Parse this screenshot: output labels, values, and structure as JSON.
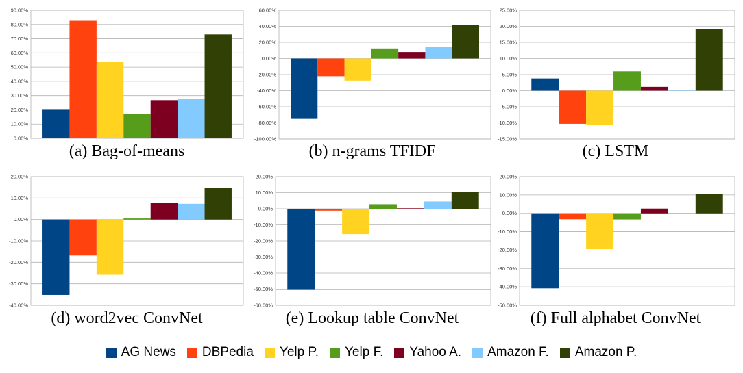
{
  "series_colors": [
    "#004586",
    "#ff420e",
    "#ffd320",
    "#579d1c",
    "#7e0021",
    "#83caff",
    "#314004"
  ],
  "legend": [
    "AG News",
    "DBPedia",
    "Yelp P.",
    "Yelp F.",
    "Yahoo A.",
    "Amazon F.",
    "Amazon P."
  ],
  "chart_data": [
    {
      "type": "bar",
      "title": "(a) Bag-of-means",
      "categories": [
        "AG News",
        "DBPedia",
        "Yelp P.",
        "Yelp F.",
        "Yahoo A.",
        "Amazon F.",
        "Amazon P."
      ],
      "values": [
        20.5,
        83.0,
        53.7,
        17.2,
        26.8,
        27.5,
        73.0
      ],
      "ylim": [
        0,
        90
      ],
      "ytick_step": 10,
      "ytick_labels": [
        "0.00%",
        "10.00%",
        "20.00%",
        "30.00%",
        "40.00%",
        "50.00%",
        "60.00%",
        "70.00%",
        "80.00%",
        "90.00%"
      ],
      "grid": true
    },
    {
      "type": "bar",
      "title": "(b) n-grams TFIDF",
      "categories": [
        "AG News",
        "DBPedia",
        "Yelp P.",
        "Yelp F.",
        "Yahoo A.",
        "Amazon F.",
        "Amazon P."
      ],
      "values": [
        -75.0,
        -22.0,
        -27.5,
        12.5,
        8.0,
        14.5,
        41.5
      ],
      "ylim": [
        -100,
        60
      ],
      "ytick_step": 20,
      "ytick_labels": [
        "-100.00%",
        "-80.00%",
        "-60.00%",
        "-40.00%",
        "-20.00%",
        "0.00%",
        "20.00%",
        "40.00%",
        "60.00%"
      ],
      "grid": true
    },
    {
      "type": "bar",
      "title": "(c) LSTM",
      "categories": [
        "AG News",
        "DBPedia",
        "Yelp P.",
        "Yelp F.",
        "Yahoo A.",
        "Amazon F.",
        "Amazon P."
      ],
      "values": [
        3.8,
        -10.3,
        -10.6,
        6.0,
        1.2,
        0.2,
        19.2
      ],
      "ylim": [
        -15,
        25
      ],
      "ytick_step": 5,
      "ytick_labels": [
        "-15.00%",
        "-10.00%",
        "-5.00%",
        "0.00%",
        "5.00%",
        "10.00%",
        "15.00%",
        "20.00%",
        "25.00%"
      ],
      "grid": true
    },
    {
      "type": "bar",
      "title": "(d) word2vec ConvNet",
      "categories": [
        "AG News",
        "DBPedia",
        "Yelp P.",
        "Yelp F.",
        "Yahoo A.",
        "Amazon F.",
        "Amazon P."
      ],
      "values": [
        -35.2,
        -16.8,
        -25.8,
        0.5,
        7.7,
        7.3,
        14.8
      ],
      "ylim": [
        -40,
        20
      ],
      "ytick_step": 10,
      "ytick_labels": [
        "-40.00%",
        "-30.00%",
        "-20.00%",
        "-10.00%",
        "0.00%",
        "10.00%",
        "20.00%"
      ],
      "grid": true
    },
    {
      "type": "bar",
      "title": "(e) Lookup table ConvNet",
      "categories": [
        "AG News",
        "DBPedia",
        "Yelp P.",
        "Yelp F.",
        "Yahoo A.",
        "Amazon F.",
        "Amazon P."
      ],
      "values": [
        -50.0,
        -1.2,
        -15.8,
        2.8,
        0.3,
        4.5,
        10.4
      ],
      "ylim": [
        -60,
        20
      ],
      "ytick_step": 10,
      "ytick_labels": [
        "-60.00%",
        "-50.00%",
        "-40.00%",
        "-30.00%",
        "-20.00%",
        "-10.00%",
        "0.00%",
        "10.00%",
        "20.00%"
      ],
      "grid": true
    },
    {
      "type": "bar",
      "title": "(f) Full alphabet ConvNet",
      "categories": [
        "AG News",
        "DBPedia",
        "Yelp P.",
        "Yelp F.",
        "Yahoo A.",
        "Amazon F.",
        "Amazon P."
      ],
      "values": [
        -40.8,
        -3.2,
        -19.5,
        -3.3,
        2.6,
        0.2,
        10.4
      ],
      "ylim": [
        -50,
        20
      ],
      "ytick_step": 10,
      "ytick_labels": [
        "-50.00%",
        "-40.00%",
        "-30.00%",
        "-20.00%",
        "-10.00%",
        "0.00%",
        "10.00%",
        "20.00%"
      ],
      "grid": true
    }
  ]
}
